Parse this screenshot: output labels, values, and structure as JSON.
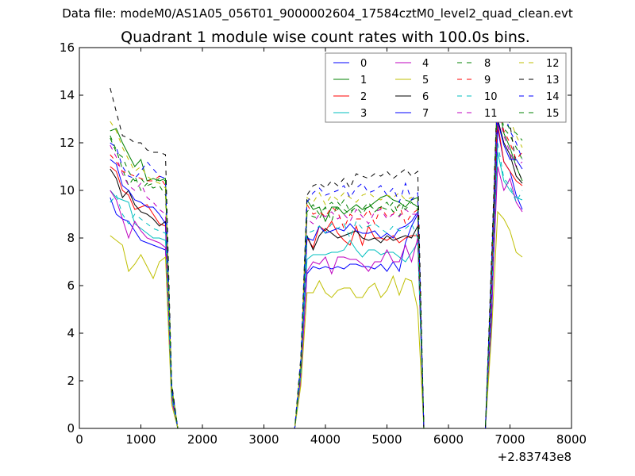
{
  "chart_data": {
    "type": "line",
    "suptitle": "Data file: modeM0/AS1A05_056T01_9000002604_17584cztM0_level2_quad_clean.evt",
    "title": "Quadrant 1 module wise count rates with 100.0s bins.",
    "xlabel": "",
    "ylabel": "",
    "x_offset_label": "+2.83743e8",
    "xlim": [
      0,
      8000
    ],
    "ylim": [
      0,
      16
    ],
    "xticks": [
      "0",
      "1000",
      "2000",
      "3000",
      "4000",
      "5000",
      "6000",
      "7000",
      "8000"
    ],
    "yticks": [
      "0",
      "2",
      "4",
      "6",
      "8",
      "10",
      "12",
      "14",
      "16"
    ],
    "grid": false,
    "legend_position": "top-right",
    "x_start": 500,
    "x_step": 100,
    "series": [
      {
        "name": "0",
        "color": "#0000ff",
        "dashed": false,
        "values": [
          9.7,
          9.0,
          8.8,
          8.7,
          8.3,
          7.9,
          7.8,
          7.7,
          7.6,
          7.5,
          1.5,
          0,
          0,
          0,
          0,
          0,
          0,
          0,
          0,
          0,
          0,
          0,
          0,
          0,
          0,
          0,
          0,
          0,
          0,
          0,
          0,
          2.2,
          6.5,
          6.8,
          6.7,
          6.8,
          6.7,
          6.8,
          6.7,
          6.9,
          6.9,
          6.8,
          6.8,
          6.7,
          6.9,
          6.6,
          7.0,
          6.6,
          7.8,
          8.5,
          9.0,
          0,
          0,
          0,
          0,
          0,
          0,
          0,
          0,
          0,
          0,
          0,
          4.5,
          12.6,
          11.2,
          10.8,
          9.8,
          9.2
        ]
      },
      {
        "name": "1",
        "color": "#008000",
        "dashed": false,
        "values": [
          12.5,
          12.6,
          12.0,
          11.5,
          11.0,
          11.3,
          10.4,
          10.5,
          10.4,
          10.5,
          1.8,
          0,
          0,
          0,
          0,
          0,
          0,
          0,
          0,
          0,
          0,
          0,
          0,
          0,
          0,
          0,
          0,
          0,
          0,
          0,
          0,
          2.6,
          9.6,
          9.2,
          9.3,
          8.7,
          9.3,
          9.3,
          9.0,
          9.2,
          9.4,
          9.2,
          9.3,
          9.5,
          9.7,
          9.8,
          9.6,
          9.5,
          9.3,
          9.6,
          9.7,
          0,
          0,
          0,
          0,
          0,
          0,
          0,
          0,
          0,
          0,
          0,
          6.0,
          13.8,
          12.4,
          11.8,
          11.0,
          10.4
        ]
      },
      {
        "name": "2",
        "color": "#ff0000",
        "dashed": false,
        "values": [
          11.0,
          10.8,
          10.0,
          9.8,
          9.2,
          9.3,
          9.4,
          9.0,
          8.6,
          8.5,
          1.3,
          0,
          0,
          0,
          0,
          0,
          0,
          0,
          0,
          0,
          0,
          0,
          0,
          0,
          0,
          0,
          0,
          0,
          0,
          0,
          0,
          2.3,
          8.0,
          7.6,
          8.5,
          8.3,
          8.7,
          8.2,
          7.9,
          7.7,
          8.5,
          7.7,
          8.5,
          8.0,
          8.0,
          7.9,
          8.1,
          7.8,
          8.0,
          8.1,
          8.1,
          0,
          0,
          0,
          0,
          0,
          0,
          0,
          0,
          0,
          0,
          0,
          5.5,
          12.8,
          11.2,
          10.8,
          10.4,
          10.2
        ]
      },
      {
        "name": "3",
        "color": "#00bfbf",
        "dashed": false,
        "values": [
          10.0,
          9.7,
          9.6,
          9.5,
          8.6,
          8.4,
          8.2,
          8.0,
          8.0,
          7.9,
          1.2,
          0,
          0,
          0,
          0,
          0,
          0,
          0,
          0,
          0,
          0,
          0,
          0,
          0,
          0,
          0,
          0,
          0,
          0,
          0,
          0,
          2.0,
          7.1,
          7.3,
          7.3,
          7.3,
          7.4,
          7.4,
          7.5,
          7.9,
          7.5,
          7.2,
          7.5,
          7.5,
          7.3,
          7.4,
          7.4,
          7.2,
          7.0,
          7.4,
          7.8,
          0,
          0,
          0,
          0,
          0,
          0,
          0,
          0,
          0,
          0,
          0,
          5.0,
          11.6,
          10.4,
          10.0,
          9.7,
          9.6
        ]
      },
      {
        "name": "4",
        "color": "#bf00bf",
        "dashed": false,
        "values": [
          10.0,
          9.6,
          8.8,
          8.0,
          8.7,
          8.3,
          8.0,
          7.9,
          7.8,
          7.6,
          1.2,
          0,
          0,
          0,
          0,
          0,
          0,
          0,
          0,
          0,
          0,
          0,
          0,
          0,
          0,
          0,
          0,
          0,
          0,
          0,
          0,
          2.0,
          6.6,
          7.0,
          6.9,
          7.2,
          6.5,
          7.2,
          7.2,
          7.1,
          7.1,
          6.9,
          6.6,
          7.0,
          7.0,
          7.5,
          7.0,
          7.0,
          7.7,
          7.0,
          8.0,
          0,
          0,
          0,
          0,
          0,
          0,
          0,
          0,
          0,
          0,
          0,
          5.0,
          11.0,
          10.0,
          10.5,
          9.5,
          9.1
        ]
      },
      {
        "name": "5",
        "color": "#bfbf00",
        "dashed": false,
        "values": [
          8.1,
          7.9,
          7.7,
          6.6,
          6.9,
          7.3,
          6.8,
          6.3,
          7.0,
          7.2,
          1.0,
          0,
          0,
          0,
          0,
          0,
          0,
          0,
          0,
          0,
          0,
          0,
          0,
          0,
          0,
          0,
          0,
          0,
          0,
          0,
          0,
          1.8,
          5.7,
          5.7,
          6.2,
          5.7,
          5.5,
          5.8,
          5.9,
          5.9,
          5.5,
          5.5,
          5.9,
          6.1,
          5.5,
          5.8,
          6.4,
          5.6,
          6.3,
          6.2,
          5.0,
          0,
          0,
          0,
          0,
          0,
          0,
          0,
          0,
          0,
          0,
          0,
          4.0,
          9.1,
          8.8,
          8.3,
          7.4,
          7.2
        ]
      },
      {
        "name": "6",
        "color": "#000000",
        "dashed": false,
        "values": [
          10.9,
          10.5,
          9.7,
          10.0,
          9.4,
          9.1,
          9.0,
          8.8,
          8.5,
          8.7,
          1.5,
          0,
          0,
          0,
          0,
          0,
          0,
          0,
          0,
          0,
          0,
          0,
          0,
          0,
          0,
          0,
          0,
          0,
          0,
          0,
          0,
          2.5,
          8.1,
          7.5,
          8.1,
          8.4,
          8.2,
          8.0,
          8.1,
          8.2,
          8.3,
          8.0,
          7.9,
          8.0,
          7.8,
          8.1,
          7.9,
          8.0,
          8.1,
          8.0,
          8.5,
          0,
          0,
          0,
          0,
          0,
          0,
          0,
          0,
          0,
          0,
          0,
          5.8,
          13.0,
          12.0,
          11.5,
          10.6,
          10.3
        ]
      },
      {
        "name": "7",
        "color": "#0000ff",
        "dashed": false,
        "values": [
          11.3,
          11.1,
          10.2,
          10.0,
          9.6,
          9.5,
          9.3,
          9.3,
          9.0,
          8.6,
          1.4,
          0,
          0,
          0,
          0,
          0,
          0,
          0,
          0,
          0,
          0,
          0,
          0,
          0,
          0,
          0,
          0,
          0,
          0,
          0,
          0,
          2.4,
          8.0,
          7.9,
          8.5,
          8.2,
          8.3,
          8.4,
          8.3,
          8.6,
          8.3,
          8.2,
          8.2,
          8.3,
          8.0,
          8.2,
          8.0,
          8.4,
          8.5,
          8.7,
          9.1,
          0,
          0,
          0,
          0,
          0,
          0,
          0,
          0,
          0,
          0,
          0,
          6.0,
          12.9,
          11.9,
          11.3,
          11.3,
          10.9
        ]
      },
      {
        "name": "8",
        "color": "#008000",
        "dashed": true,
        "values": [
          12.3,
          11.7,
          10.9,
          10.2,
          10.6,
          10.0,
          10.3,
          10.1,
          10.2,
          9.8,
          1.6,
          0,
          0,
          0,
          0,
          0,
          0,
          0,
          0,
          0,
          0,
          0,
          0,
          0,
          0,
          0,
          0,
          0,
          0,
          0,
          0,
          2.6,
          9.0,
          8.9,
          8.8,
          9.3,
          8.7,
          9.5,
          9.2,
          9.0,
          9.4,
          9.2,
          9.5,
          9.1,
          9.3,
          9.2,
          9.5,
          8.9,
          9.6,
          9.5,
          9.3,
          0,
          0,
          0,
          0,
          0,
          0,
          0,
          0,
          0,
          0,
          0,
          6.5,
          14.2,
          12.6,
          12.3,
          11.8,
          11.3
        ]
      },
      {
        "name": "9",
        "color": "#ff0000",
        "dashed": true,
        "values": [
          11.5,
          11.2,
          10.8,
          10.7,
          10.6,
          10.5,
          10.4,
          10.4,
          10.6,
          10.2,
          1.6,
          0,
          0,
          0,
          0,
          0,
          0,
          0,
          0,
          0,
          0,
          0,
          0,
          0,
          0,
          0,
          0,
          0,
          0,
          0,
          0,
          2.7,
          9.4,
          9.0,
          9.1,
          8.9,
          9.3,
          9.1,
          8.4,
          9.0,
          8.8,
          8.8,
          9.2,
          8.6,
          9.3,
          8.9,
          9.0,
          9.4,
          8.6,
          9.0,
          9.2,
          0,
          0,
          0,
          0,
          0,
          0,
          0,
          0,
          0,
          0,
          0,
          6.4,
          13.5,
          12.5,
          12.0,
          11.3,
          11.6
        ]
      },
      {
        "name": "10",
        "color": "#00bfbf",
        "dashed": true,
        "values": [
          9.5,
          9.8,
          9.0,
          8.6,
          9.0,
          8.8,
          8.6,
          8.4,
          8.3,
          8.2,
          1.3,
          0,
          0,
          0,
          0,
          0,
          0,
          0,
          0,
          0,
          0,
          0,
          0,
          0,
          0,
          0,
          0,
          0,
          0,
          0,
          0,
          2.3,
          8.2,
          8.3,
          8.5,
          8.2,
          8.6,
          8.4,
          8.6,
          8.0,
          8.7,
          8.4,
          8.5,
          8.6,
          8.4,
          8.2,
          8.5,
          8.3,
          8.4,
          8.6,
          8.0,
          0,
          0,
          0,
          0,
          0,
          0,
          0,
          0,
          0,
          0,
          0,
          5.5,
          12.0,
          10.5,
          10.2,
          9.5,
          10.0
        ]
      },
      {
        "name": "11",
        "color": "#bf00bf",
        "dashed": true,
        "values": [
          11.9,
          11.4,
          10.7,
          10.2,
          10.0,
          10.3,
          9.7,
          9.5,
          9.2,
          9.0,
          1.5,
          0,
          0,
          0,
          0,
          0,
          0,
          0,
          0,
          0,
          0,
          0,
          0,
          0,
          0,
          0,
          0,
          0,
          0,
          0,
          0,
          2.6,
          8.8,
          8.6,
          9.0,
          8.9,
          9.1,
          8.8,
          9.0,
          8.7,
          9.2,
          8.9,
          8.6,
          9.1,
          9.2,
          8.8,
          9.0,
          8.9,
          9.2,
          9.0,
          9.0,
          0,
          0,
          0,
          0,
          0,
          0,
          0,
          0,
          0,
          0,
          0,
          6.3,
          13.4,
          12.3,
          11.6,
          11.0,
          11.2
        ]
      },
      {
        "name": "12",
        "color": "#bfbf00",
        "dashed": true,
        "values": [
          12.9,
          12.5,
          11.8,
          11.3,
          10.8,
          11.0,
          10.6,
          10.4,
          10.3,
          10.1,
          1.7,
          0,
          0,
          0,
          0,
          0,
          0,
          0,
          0,
          0,
          0,
          0,
          0,
          0,
          0,
          0,
          0,
          0,
          0,
          0,
          0,
          2.8,
          9.7,
          9.5,
          9.9,
          9.4,
          9.8,
          9.6,
          9.9,
          9.7,
          9.5,
          9.8,
          9.9,
          9.7,
          9.6,
          9.8,
          9.7,
          9.9,
          9.6,
          9.7,
          9.5,
          0,
          0,
          0,
          0,
          0,
          0,
          0,
          0,
          0,
          0,
          0,
          6.8,
          14.8,
          13.5,
          13.0,
          12.3,
          11.8
        ]
      },
      {
        "name": "13",
        "color": "#000000",
        "dashed": true,
        "values": [
          14.3,
          13.3,
          12.3,
          12.2,
          12.0,
          12.0,
          11.7,
          11.6,
          11.6,
          11.5,
          1.9,
          0,
          0,
          0,
          0,
          0,
          0,
          0,
          0,
          0,
          0,
          0,
          0,
          0,
          0,
          0,
          0,
          0,
          0,
          0,
          0,
          3.0,
          9.8,
          10.2,
          10.3,
          10.1,
          10.4,
          10.2,
          10.5,
          10.1,
          10.7,
          10.6,
          10.5,
          10.7,
          10.6,
          10.8,
          10.5,
          10.7,
          10.9,
          10.6,
          10.8,
          0,
          0,
          0,
          0,
          0,
          0,
          0,
          0,
          0,
          0,
          0,
          7.2,
          14.7,
          13.4,
          12.8,
          11.0,
          10.4
        ]
      },
      {
        "name": "14",
        "color": "#0000ff",
        "dashed": true,
        "values": [
          12.0,
          11.8,
          11.0,
          10.6,
          10.5,
          10.8,
          11.2,
          10.9,
          10.6,
          10.5,
          1.7,
          0,
          0,
          0,
          0,
          0,
          0,
          0,
          0,
          0,
          0,
          0,
          0,
          0,
          0,
          0,
          0,
          0,
          0,
          0,
          0,
          2.9,
          9.5,
          9.9,
          10.1,
          9.8,
          9.9,
          10.0,
          10.2,
          9.7,
          10.1,
          10.3,
          9.9,
          10.0,
          10.2,
          9.8,
          10.1,
          9.5,
          10.3,
          9.6,
          9.9,
          0,
          0,
          0,
          0,
          0,
          0,
          0,
          0,
          0,
          0,
          0,
          6.9,
          14.3,
          13.3,
          12.5,
          12.0,
          11.3
        ]
      },
      {
        "name": "15",
        "color": "#008000",
        "dashed": true,
        "values": [
          12.2,
          11.6,
          11.4,
          10.8,
          10.4,
          10.5,
          10.2,
          10.3,
          10.5,
          10.4,
          1.6,
          0,
          0,
          0,
          0,
          0,
          0,
          0,
          0,
          0,
          0,
          0,
          0,
          0,
          0,
          0,
          0,
          0,
          0,
          0,
          0,
          2.7,
          9.1,
          9.4,
          9.0,
          9.3,
          9.5,
          9.2,
          9.6,
          9.1,
          9.3,
          9.0,
          9.4,
          9.2,
          9.3,
          9.5,
          9.1,
          9.4,
          9.2,
          9.5,
          9.2,
          0,
          0,
          0,
          0,
          0,
          0,
          0,
          0,
          0,
          0,
          0,
          6.6,
          14.0,
          12.9,
          12.6,
          12.4,
          12.1
        ]
      }
    ]
  }
}
